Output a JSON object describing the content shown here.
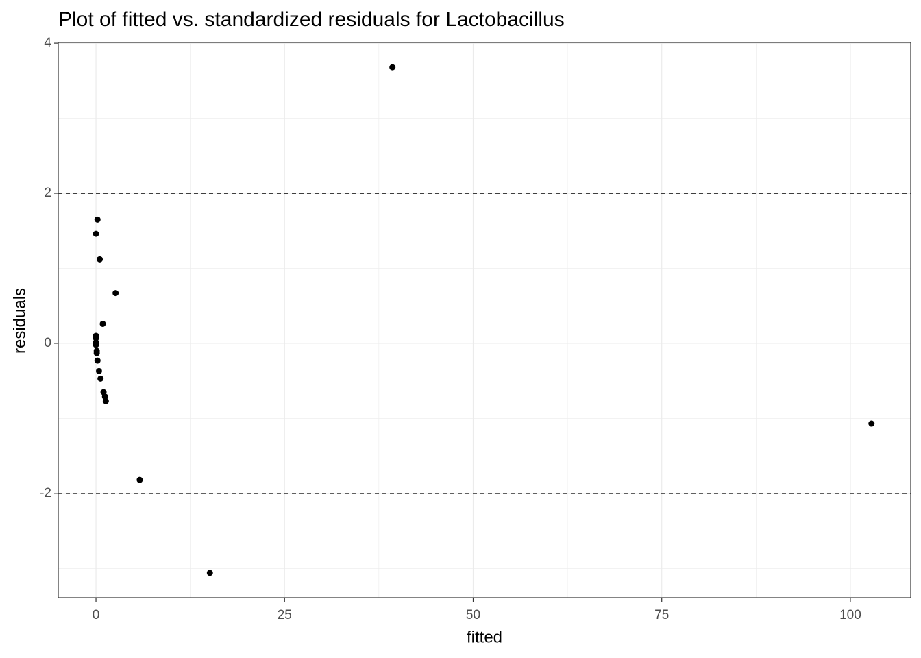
{
  "chart_data": {
    "type": "scatter",
    "title": "Plot of fitted vs. standardized residuals for Lactobacillus",
    "xlabel": "fitted",
    "ylabel": "residuals",
    "x": [
      39.3,
      0.2,
      0,
      0.5,
      2.6,
      0.9,
      0,
      0,
      0,
      0,
      0.1,
      0.1,
      0.2,
      0.4,
      0.6,
      1.0,
      1.2,
      1.3,
      102.8,
      5.8,
      15.1
    ],
    "values": [
      3.68,
      1.65,
      1.46,
      1.12,
      0.67,
      0.26,
      0.1,
      0.07,
      0.01,
      -0.02,
      -0.1,
      -0.13,
      -0.23,
      -0.37,
      -0.47,
      -0.65,
      -0.71,
      -0.77,
      -1.07,
      -1.82,
      -3.06
    ],
    "color": "#000000",
    "xlim": [
      -5,
      108
    ],
    "ylim": [
      -3.39,
      4.01
    ],
    "xticks": [
      0,
      25,
      50,
      75,
      100
    ],
    "yticks": [
      -2,
      0,
      2,
      4
    ],
    "minor_xticks": [
      12.5,
      37.5,
      62.5,
      87.5
    ],
    "minor_yticks": [
      -3,
      -1,
      1,
      3
    ],
    "hlines": [
      2,
      -2
    ],
    "grid": true
  }
}
